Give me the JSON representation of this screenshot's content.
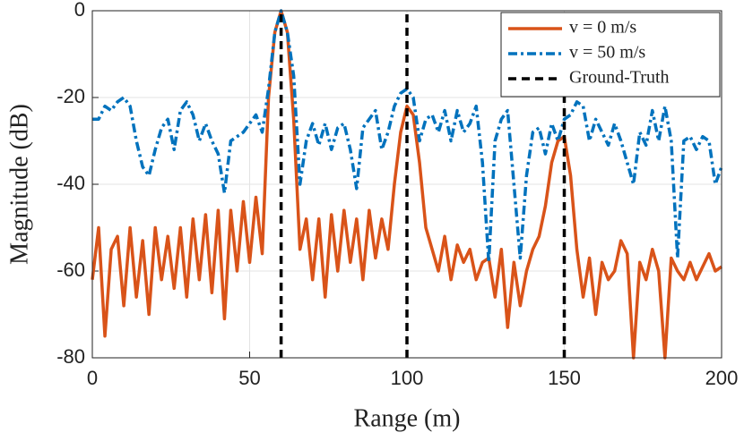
{
  "chart_data": {
    "type": "line",
    "xlabel": "Range (m)",
    "ylabel": "Magnitude (dB)",
    "xlim": [
      0,
      200
    ],
    "xticks": [
      0,
      50,
      100,
      150,
      200
    ],
    "ylim": [
      -80,
      0
    ],
    "yticks": [
      0,
      -20,
      -40,
      -60,
      -80
    ],
    "grid": true,
    "legend": "upper right",
    "x": [
      0,
      2,
      4,
      6,
      8,
      10,
      12,
      14,
      16,
      18,
      20,
      22,
      24,
      26,
      28,
      30,
      32,
      34,
      36,
      38,
      40,
      42,
      44,
      46,
      48,
      50,
      52,
      54,
      56,
      58,
      60,
      62,
      64,
      66,
      68,
      70,
      72,
      74,
      76,
      78,
      80,
      82,
      84,
      86,
      88,
      90,
      92,
      94,
      96,
      98,
      100,
      102,
      104,
      106,
      108,
      110,
      112,
      114,
      116,
      118,
      120,
      122,
      124,
      126,
      128,
      130,
      132,
      134,
      136,
      138,
      140,
      142,
      144,
      146,
      148,
      150,
      152,
      154,
      156,
      158,
      160,
      162,
      164,
      166,
      168,
      170,
      172,
      174,
      176,
      178,
      180,
      182,
      184,
      186,
      188,
      190,
      192,
      194,
      196,
      198,
      200
    ],
    "series": [
      {
        "name": "v = 0 m/s",
        "color": "#d95319",
        "style": "solid",
        "values": [
          -62,
          -50,
          -75,
          -55,
          -52,
          -68,
          -50,
          -66,
          -53,
          -70,
          -50,
          -62,
          -52,
          -64,
          -50,
          -66,
          -48,
          -62,
          -47,
          -65,
          -46,
          -71,
          -46,
          -60,
          -44,
          -58,
          -43,
          -56,
          -20,
          -5,
          0,
          -5,
          -25,
          -55,
          -48,
          -62,
          -48,
          -66,
          -47,
          -60,
          -46,
          -58,
          -48,
          -62,
          -46,
          -57,
          -48,
          -55,
          -40,
          -28,
          -22,
          -24,
          -35,
          -50,
          -55,
          -60,
          -52,
          -62,
          -54,
          -58,
          -55,
          -62,
          -58,
          -57,
          -66,
          -55,
          -73,
          -58,
          -68,
          -60,
          -55,
          -52,
          -45,
          -35,
          -30,
          -29,
          -38,
          -55,
          -66,
          -57,
          -70,
          -58,
          -62,
          -60,
          -53,
          -56,
          -80,
          -58,
          -62,
          -55,
          -60,
          -80,
          -57,
          -60,
          -62,
          -58,
          -62,
          -59,
          -56,
          -60,
          -59
        ]
      },
      {
        "name": "v = 50 m/s",
        "color": "#0072bd",
        "style": "dashdot",
        "values": [
          -25,
          -25,
          -22,
          -23,
          -21,
          -20,
          -22,
          -30,
          -36,
          -38,
          -32,
          -27,
          -25,
          -32,
          -23,
          -21,
          -24,
          -30,
          -26,
          -30,
          -33,
          -42,
          -30,
          -29,
          -28,
          -26,
          -24,
          -28,
          -18,
          -5,
          0,
          -5,
          -15,
          -40,
          -30,
          -26,
          -31,
          -26,
          -32,
          -27,
          -26,
          -32,
          -41,
          -27,
          -25,
          -23,
          -32,
          -28,
          -22,
          -19,
          -18,
          -20,
          -30,
          -25,
          -24,
          -28,
          -23,
          -30,
          -23,
          -28,
          -26,
          -22,
          -35,
          -58,
          -30,
          -25,
          -23,
          -40,
          -57,
          -38,
          -28,
          -27,
          -33,
          -26,
          -30,
          -25,
          -24,
          -21,
          -22,
          -30,
          -25,
          -28,
          -31,
          -26,
          -30,
          -35,
          -40,
          -28,
          -31,
          -23,
          -30,
          -22,
          -30,
          -57,
          -30,
          -29,
          -32,
          -29,
          -30,
          -40,
          -36
        ]
      }
    ],
    "ground_truth": {
      "name": "Ground-Truth",
      "color": "#000000",
      "x": [
        60,
        100,
        150
      ]
    }
  }
}
